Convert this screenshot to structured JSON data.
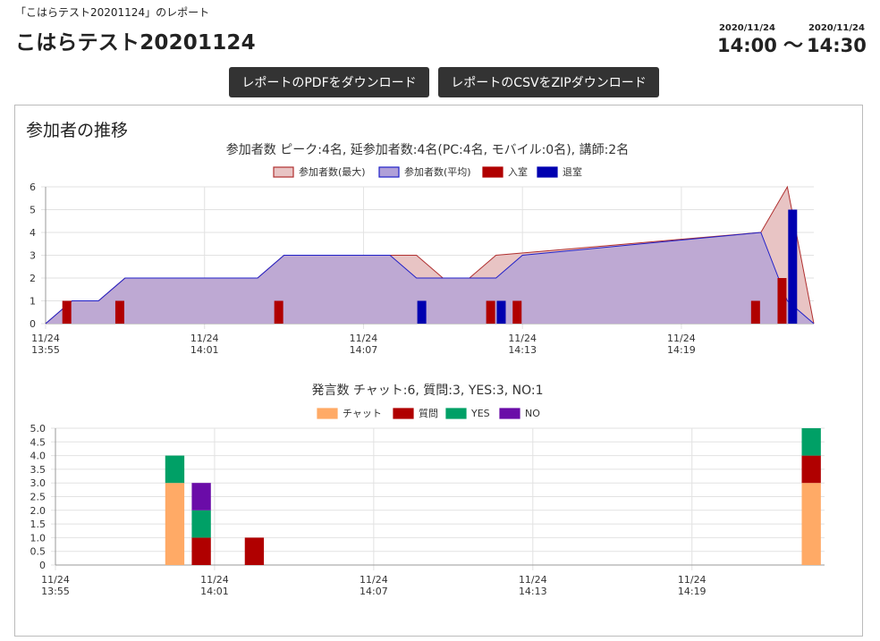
{
  "header": {
    "breadcrumb": "「こはらテスト20201124」のレポート",
    "title": "こはらテスト20201124",
    "start_date": "2020/11/24",
    "start_time": "14:00",
    "tilde": "〜",
    "end_date": "2020/11/24",
    "end_time": "14:30"
  },
  "buttons": {
    "pdf_label": "レポートのPDFをダウンロード",
    "csv_label": "レポートのCSVをZIPダウンロード"
  },
  "panel": {
    "title": "参加者の推移"
  },
  "colors": {
    "max_fill": "#e8c4c4",
    "max_line": "#b03030",
    "avg_fill": "#b0a0d8",
    "avg_line": "#2020c8",
    "enter": "#b00000",
    "exit": "#0000b0",
    "chat": "#ffaa66",
    "question": "#b00000",
    "yes": "#00a066",
    "no": "#6a0ca8"
  },
  "chart_data": [
    {
      "type": "area",
      "title": "参加者数 ピーク:4名, 延参加者数:4名(PC:4名, モバイル:0名), 講師:2名",
      "legend": [
        "参加者数(最大)",
        "参加者数(平均)",
        "入室",
        "退室"
      ],
      "x_ticks": [
        {
          "date": "11/24",
          "time": "13:55",
          "min": 0
        },
        {
          "date": "11/24",
          "time": "14:01",
          "min": 6
        },
        {
          "date": "11/24",
          "time": "14:07",
          "min": 12
        },
        {
          "date": "11/24",
          "time": "14:13",
          "min": 18
        },
        {
          "date": "11/24",
          "time": "14:19",
          "min": 24
        }
      ],
      "x_range_min": [
        0,
        29
      ],
      "ylim": [
        0,
        6
      ],
      "y_ticks": [
        "0",
        "1",
        "2",
        "3",
        "4",
        "5",
        "6"
      ],
      "series": [
        {
          "name": "参加者数(最大)",
          "kind": "area",
          "points": [
            [
              0,
              0
            ],
            [
              1,
              1
            ],
            [
              2,
              1
            ],
            [
              3,
              2
            ],
            [
              8,
              2
            ],
            [
              9,
              3
            ],
            [
              14,
              3
            ],
            [
              15,
              2
            ],
            [
              16,
              2
            ],
            [
              17,
              3
            ],
            [
              27,
              4
            ],
            [
              28,
              6
            ],
            [
              29,
              0
            ]
          ]
        },
        {
          "name": "参加者数(平均)",
          "kind": "area",
          "points": [
            [
              0,
              0
            ],
            [
              1,
              1
            ],
            [
              2,
              1
            ],
            [
              3,
              2
            ],
            [
              8,
              2
            ],
            [
              9,
              3
            ],
            [
              13,
              3
            ],
            [
              14,
              2
            ],
            [
              17,
              2
            ],
            [
              18,
              3
            ],
            [
              27,
              4
            ],
            [
              28,
              1
            ],
            [
              29,
              0
            ]
          ]
        },
        {
          "name": "入室",
          "kind": "bar",
          "points": [
            [
              0.8,
              1
            ],
            [
              2.8,
              1
            ],
            [
              8.8,
              1
            ],
            [
              16.8,
              1
            ],
            [
              17.8,
              1
            ],
            [
              26.8,
              1
            ],
            [
              27.8,
              2
            ]
          ]
        },
        {
          "name": "退室",
          "kind": "bar",
          "points": [
            [
              14.2,
              1
            ],
            [
              17.2,
              1
            ],
            [
              28.2,
              5
            ]
          ]
        }
      ]
    },
    {
      "type": "bar",
      "stacked": true,
      "title": "発言数 チャット:6, 質問:3, YES:3, NO:1",
      "legend": [
        "チャット",
        "質問",
        "YES",
        "NO"
      ],
      "x_ticks": [
        {
          "date": "11/24",
          "time": "13:55",
          "min": 0
        },
        {
          "date": "11/24",
          "time": "14:01",
          "min": 6
        },
        {
          "date": "11/24",
          "time": "14:07",
          "min": 12
        },
        {
          "date": "11/24",
          "time": "14:13",
          "min": 18
        },
        {
          "date": "11/24",
          "time": "14:19",
          "min": 24
        }
      ],
      "x_range_min": [
        0,
        29
      ],
      "ylim": [
        0,
        5
      ],
      "y_ticks": [
        "0",
        "0.5",
        "1.0",
        "1.5",
        "2.0",
        "2.5",
        "3.0",
        "3.5",
        "4.0",
        "4.5",
        "5.0"
      ],
      "x": [
        4.5,
        5.5,
        7.5,
        28.5
      ],
      "series": [
        {
          "name": "チャット",
          "values": [
            3,
            0,
            0,
            3
          ]
        },
        {
          "name": "質問",
          "values": [
            0,
            1,
            1,
            1
          ]
        },
        {
          "name": "YES",
          "values": [
            1,
            1,
            0,
            1
          ]
        },
        {
          "name": "NO",
          "values": [
            0,
            1,
            0,
            0
          ]
        }
      ]
    }
  ]
}
